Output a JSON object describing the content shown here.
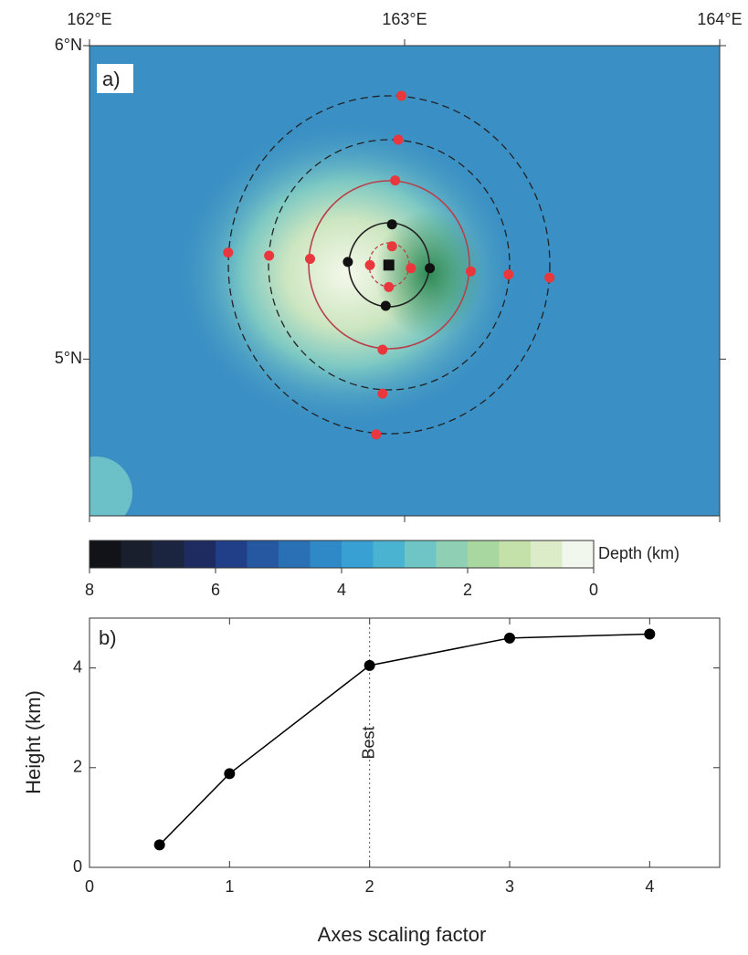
{
  "chart_data": [
    {
      "type": "map",
      "panel_label": "a)",
      "xlim": [
        162,
        164
      ],
      "ylim": [
        4.5,
        6
      ],
      "xticks": [
        {
          "value": 162,
          "label": "162°E"
        },
        {
          "value": 163,
          "label": "163°E"
        },
        {
          "value": 164,
          "label": "164°E"
        }
      ],
      "yticks": [
        {
          "value": 5,
          "label": "5°N"
        },
        {
          "value": 6,
          "label": "6°N"
        }
      ],
      "series": [
        {
          "color": "#e8383d",
          "x": [
            162.99,
            162.98,
            162.97,
            162.96,
            162.89,
            163.02,
            162.95,
            162.93,
            162.93,
            162.91,
            162.44,
            162.57,
            162.7,
            163.21,
            163.33,
            163.46
          ],
          "y": [
            5.84,
            5.7,
            5.57,
            5.36,
            5.3,
            5.29,
            5.23,
            5.03,
            4.89,
            4.76,
            5.34,
            5.33,
            5.32,
            5.28,
            5.27,
            5.26
          ]
        },
        {
          "color": "#111111",
          "x": [
            162.96,
            162.82,
            163.08,
            162.94
          ],
          "y": [
            5.43,
            5.31,
            5.29,
            5.17
          ]
        }
      ],
      "center": {
        "color": "#111111",
        "x": 162.95,
        "y": 5.3
      },
      "colorbar": {
        "label": "Depth (km)",
        "lim": [
          8,
          0
        ],
        "ticks": [
          8,
          6,
          4,
          2,
          0
        ],
        "colors": [
          "#111318",
          "#1a1f2e",
          "#1c2540",
          "#1d2b60",
          "#213f88",
          "#2558a0",
          "#2a70b5",
          "#2f89c6",
          "#38a0d2",
          "#4bb3d2",
          "#6fc4c5",
          "#8fcfb3",
          "#a8d79f",
          "#c3e1a8",
          "#dcecc8",
          "#f2f7ee"
        ]
      }
    },
    {
      "type": "line",
      "panel_label": "b)",
      "x_label": "Axes scaling factor",
      "y_label": "Height (km)",
      "annotation": "Best",
      "annotation_x": 2,
      "x": [
        0.5,
        1,
        2,
        3,
        4
      ],
      "values": [
        0.45,
        1.88,
        4.05,
        4.6,
        4.68
      ],
      "color": "#000000",
      "xlim": [
        0,
        4.5
      ],
      "ylim": [
        0,
        5
      ],
      "xticks": [
        0,
        1,
        2,
        3,
        4
      ],
      "yticks": [
        0,
        2,
        4
      ]
    }
  ]
}
